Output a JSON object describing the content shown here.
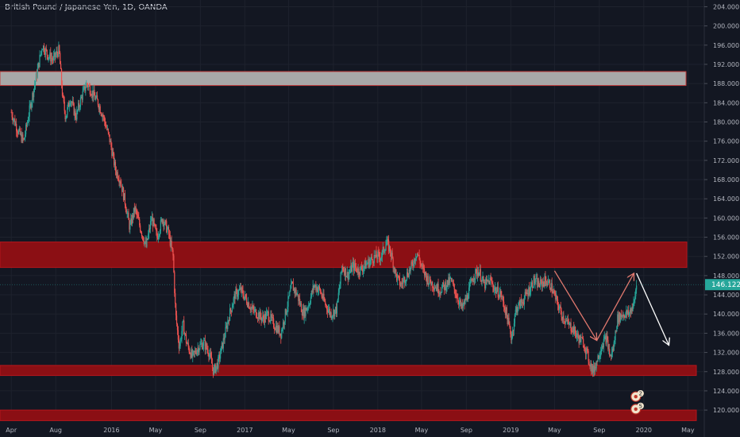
{
  "chart_data": {
    "type": "candlestick",
    "title": "British Pound / Japanese Yen, 1D, OANDA",
    "x_labels": [
      "Apr",
      "Aug",
      "2016",
      "May",
      "Sep",
      "2017",
      "May",
      "Sep",
      "2018",
      "May",
      "Sep",
      "2019",
      "May",
      "Sep",
      "2020",
      "May"
    ],
    "y_ticks": [
      "204.000",
      "200.000",
      "196.000",
      "192.000",
      "188.000",
      "184.000",
      "180.000",
      "176.000",
      "172.000",
      "168.000",
      "164.000",
      "160.000",
      "156.000",
      "152.000",
      "148.000",
      "144.000",
      "140.000",
      "136.000",
      "132.000",
      "128.000",
      "124.000",
      "120.000"
    ],
    "ylim": [
      117.7,
      205.4
    ],
    "current_price": "146.122",
    "current_price_value": 146.122,
    "price_path": [
      [
        "2015-04-01",
        182.0
      ],
      [
        "2015-04-20",
        178.0
      ],
      [
        "2015-05-05",
        176.0
      ],
      [
        "2015-05-25",
        184.0
      ],
      [
        "2015-06-10",
        190.0
      ],
      [
        "2015-06-25",
        196.0
      ],
      [
        "2015-07-10",
        194.0
      ],
      [
        "2015-07-25",
        193.0
      ],
      [
        "2015-08-10",
        195.0
      ],
      [
        "2015-08-20",
        185.0
      ],
      [
        "2015-08-28",
        181.0
      ],
      [
        "2015-09-10",
        185.0
      ],
      [
        "2015-09-25",
        181.0
      ],
      [
        "2015-10-10",
        185.0
      ],
      [
        "2015-10-25",
        188.0
      ],
      [
        "2015-11-10",
        186.0
      ],
      [
        "2015-11-25",
        184.0
      ],
      [
        "2015-12-10",
        181.0
      ],
      [
        "2015-12-28",
        176.0
      ],
      [
        "2016-01-12",
        170.0
      ],
      [
        "2016-01-25",
        168.0
      ],
      [
        "2016-02-08",
        163.0
      ],
      [
        "2016-02-20",
        158.0
      ],
      [
        "2016-03-05",
        162.0
      ],
      [
        "2016-03-20",
        158.0
      ],
      [
        "2016-04-05",
        154.0
      ],
      [
        "2016-04-20",
        160.0
      ],
      [
        "2016-05-05",
        156.0
      ],
      [
        "2016-05-20",
        160.0
      ],
      [
        "2016-06-05",
        157.0
      ],
      [
        "2016-06-18",
        152.0
      ],
      [
        "2016-06-25",
        140.0
      ],
      [
        "2016-07-05",
        133.0
      ],
      [
        "2016-07-15",
        138.0
      ],
      [
        "2016-07-25",
        134.0
      ],
      [
        "2016-08-10",
        131.0
      ],
      [
        "2016-08-25",
        133.0
      ],
      [
        "2016-09-10",
        134.0
      ],
      [
        "2016-09-25",
        132.0
      ],
      [
        "2016-10-07",
        128.0
      ],
      [
        "2016-10-20",
        130.0
      ],
      [
        "2016-11-05",
        135.0
      ],
      [
        "2016-11-20",
        140.0
      ],
      [
        "2016-12-05",
        144.0
      ],
      [
        "2016-12-20",
        145.0
      ],
      [
        "2017-01-05",
        143.0
      ],
      [
        "2017-01-20",
        141.0
      ],
      [
        "2017-02-05",
        140.0
      ],
      [
        "2017-02-20",
        139.0
      ],
      [
        "2017-03-05",
        140.0
      ],
      [
        "2017-03-20",
        138.0
      ],
      [
        "2017-04-10",
        136.0
      ],
      [
        "2017-04-25",
        141.0
      ],
      [
        "2017-05-10",
        146.0
      ],
      [
        "2017-05-25",
        144.0
      ],
      [
        "2017-06-10",
        140.0
      ],
      [
        "2017-06-25",
        142.0
      ],
      [
        "2017-07-10",
        146.0
      ],
      [
        "2017-07-25",
        145.0
      ],
      [
        "2017-08-10",
        142.0
      ],
      [
        "2017-08-25",
        140.0
      ],
      [
        "2017-09-10",
        141.0
      ],
      [
        "2017-09-25",
        150.0
      ],
      [
        "2017-10-10",
        148.0
      ],
      [
        "2017-10-25",
        150.0
      ],
      [
        "2017-11-10",
        149.0
      ],
      [
        "2017-11-25",
        150.0
      ],
      [
        "2017-12-10",
        151.0
      ],
      [
        "2017-12-25",
        152.0
      ],
      [
        "2018-01-10",
        152.0
      ],
      [
        "2018-01-25",
        155.0
      ],
      [
        "2018-02-05",
        153.0
      ],
      [
        "2018-02-20",
        148.0
      ],
      [
        "2018-03-05",
        146.0
      ],
      [
        "2018-03-20",
        148.0
      ],
      [
        "2018-04-05",
        150.0
      ],
      [
        "2018-04-18",
        153.0
      ],
      [
        "2018-05-05",
        149.0
      ],
      [
        "2018-05-20",
        147.0
      ],
      [
        "2018-06-05",
        146.0
      ],
      [
        "2018-06-20",
        145.0
      ],
      [
        "2018-07-05",
        146.0
      ],
      [
        "2018-07-20",
        147.0
      ],
      [
        "2018-08-05",
        144.0
      ],
      [
        "2018-08-20",
        141.0
      ],
      [
        "2018-09-05",
        144.0
      ],
      [
        "2018-09-20",
        148.0
      ],
      [
        "2018-10-05",
        149.0
      ],
      [
        "2018-10-20",
        146.0
      ],
      [
        "2018-11-05",
        147.0
      ],
      [
        "2018-11-20",
        145.0
      ],
      [
        "2018-12-05",
        144.0
      ],
      [
        "2018-12-20",
        140.0
      ],
      [
        "2019-01-03",
        135.0
      ],
      [
        "2019-01-15",
        141.0
      ],
      [
        "2019-02-05",
        143.0
      ],
      [
        "2019-02-20",
        145.0
      ],
      [
        "2019-03-05",
        147.0
      ],
      [
        "2019-03-20",
        146.0
      ],
      [
        "2019-04-05",
        147.0
      ],
      [
        "2019-04-20",
        146.0
      ],
      [
        "2019-05-05",
        143.0
      ],
      [
        "2019-05-20",
        140.0
      ],
      [
        "2019-06-05",
        138.0
      ],
      [
        "2019-06-20",
        137.0
      ],
      [
        "2019-07-05",
        135.0
      ],
      [
        "2019-07-20",
        134.0
      ],
      [
        "2019-08-05",
        130.0
      ],
      [
        "2019-08-15",
        128.0
      ],
      [
        "2019-08-28",
        131.0
      ],
      [
        "2019-09-10",
        134.0
      ],
      [
        "2019-09-20",
        135.0
      ],
      [
        "2019-10-01",
        131.0
      ],
      [
        "2019-10-10",
        133.0
      ],
      [
        "2019-10-20",
        139.0
      ],
      [
        "2019-11-05",
        140.0
      ],
      [
        "2019-11-20",
        140.0
      ],
      [
        "2019-12-05",
        142.0
      ],
      [
        "2019-12-12",
        146.122
      ]
    ],
    "zones": [
      {
        "y_from": 187.6,
        "y_to": 190.5,
        "color": "#a8a8a8"
      },
      {
        "y_from": 149.7,
        "y_to": 155.0,
        "color": "#8b0f14"
      },
      {
        "y_from": 127.2,
        "y_to": 129.3,
        "color": "#8b0f14"
      },
      {
        "y_from": 117.8,
        "y_to": 120.0,
        "color": "#8b0f14"
      }
    ],
    "arrows": [
      {
        "from": [
          "2019-05-01",
          149.0
        ],
        "to": [
          "2019-08-25",
          134.5
        ],
        "color": "#e1786e"
      },
      {
        "from": [
          "2019-08-25",
          134.5
        ],
        "to": [
          "2019-12-05",
          148.5
        ],
        "color": "#e1786e"
      },
      {
        "from": [
          "2019-12-12",
          148.5
        ],
        "to": [
          "2020-03-10",
          133.5
        ],
        "color": "#ffffff"
      }
    ],
    "event_markers": [
      {
        "label": "2",
        "date": "2019-12-10",
        "y": 122.8
      },
      {
        "label": "5",
        "date": "2019-12-10",
        "y": 120.2
      }
    ],
    "colors": {
      "background": "#131722",
      "up": "#26a69a",
      "down": "#ef5350",
      "grid": "#1e222d",
      "price_tag": "#26a69a"
    },
    "grid": true
  }
}
